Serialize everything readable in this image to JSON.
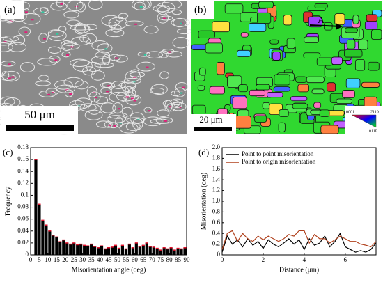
{
  "panels": {
    "a": {
      "label": "(a)",
      "scale_bar": "50 μm"
    },
    "b": {
      "label": "(b)",
      "scale_bar": "20 μm",
      "marker": "A",
      "key": [
        "0001",
        "2̄110",
        "011̄0"
      ]
    }
  },
  "chart_data": [
    {
      "type": "histogram",
      "label": "(c)",
      "xlabel": "Misorientation angle (deg)",
      "ylabel": "Frequency",
      "bins": [
        2,
        4,
        6,
        8,
        10,
        12,
        14,
        16,
        18,
        20,
        22,
        24,
        26,
        28,
        30,
        32,
        34,
        36,
        38,
        40,
        42,
        44,
        46,
        48,
        50,
        52,
        54,
        56,
        58,
        60,
        62,
        64,
        66,
        68,
        70,
        72,
        74,
        76,
        78,
        80,
        82,
        84,
        86,
        88,
        90
      ],
      "counts": [
        0.16,
        0.085,
        0.058,
        0.05,
        0.04,
        0.033,
        0.03,
        0.022,
        0.025,
        0.02,
        0.018,
        0.02,
        0.017,
        0.018,
        0.016,
        0.015,
        0.018,
        0.014,
        0.012,
        0.015,
        0.01,
        0.012,
        0.013,
        0.016,
        0.011,
        0.016,
        0.01,
        0.018,
        0.012,
        0.02,
        0.014,
        0.016,
        0.02,
        0.014,
        0.013,
        0.011,
        0.008,
        0.012,
        0.01,
        0.012,
        0.008,
        0.011,
        0.01,
        0.012
      ],
      "color": "#000000",
      "edge_color": "#e0102a",
      "xlim": [
        0,
        90
      ],
      "xticks": [
        0,
        5,
        10,
        15,
        20,
        25,
        30,
        35,
        40,
        45,
        50,
        55,
        60,
        65,
        70,
        75,
        80,
        85,
        90
      ],
      "ylim": [
        0,
        0.18
      ],
      "yticks": [
        0,
        0.02,
        0.04,
        0.06,
        0.08,
        0.1,
        0.12,
        0.14,
        0.16,
        0.18
      ]
    },
    {
      "type": "line",
      "label": "(d)",
      "xlabel": "Distance (μm)",
      "ylabel": "Misorientation (deg)",
      "x": [
        0,
        0.25,
        0.5,
        0.75,
        1,
        1.25,
        1.5,
        1.75,
        2,
        2.25,
        2.5,
        2.75,
        3,
        3.25,
        3.5,
        3.75,
        4,
        4.25,
        4.5,
        4.75,
        5,
        5.25,
        5.5,
        5.75,
        6,
        6.25,
        6.5,
        6.75,
        7,
        7.25,
        7.5
      ],
      "series": [
        {
          "name": "Point to point misorientation",
          "color": "#000000",
          "values": [
            0.05,
            0.35,
            0.2,
            0.28,
            0.15,
            0.3,
            0.18,
            0.25,
            0.12,
            0.28,
            0.2,
            0.15,
            0.22,
            0.3,
            0.2,
            0.28,
            0.1,
            0.3,
            0.18,
            0.22,
            0.35,
            0.15,
            0.25,
            0.4,
            0.15,
            0.1,
            0.05,
            0.08,
            0.05,
            0.1,
            0.22
          ]
        },
        {
          "name": "Point to origin misorientation",
          "color": "#b0401c",
          "values": [
            0.1,
            0.4,
            0.45,
            0.25,
            0.4,
            0.3,
            0.25,
            0.35,
            0.28,
            0.35,
            0.3,
            0.25,
            0.3,
            0.38,
            0.35,
            0.45,
            0.45,
            0.22,
            0.38,
            0.3,
            0.3,
            0.22,
            0.28,
            0.35,
            0.3,
            0.25,
            0.25,
            0.2,
            0.18,
            0.15,
            0.25
          ]
        }
      ],
      "legend": "upper left",
      "xlim": [
        0,
        7.5
      ],
      "xticks": [
        0,
        2,
        4,
        6
      ],
      "ylim": [
        0,
        2
      ],
      "yticks": [
        0,
        0.2,
        0.4,
        0.6,
        0.8,
        {
          "value": 1,
          "label": "1.0"
        },
        1.2,
        1.4,
        1.6,
        1.8,
        {
          "value": 2,
          "label": "2.0"
        }
      ]
    }
  ]
}
